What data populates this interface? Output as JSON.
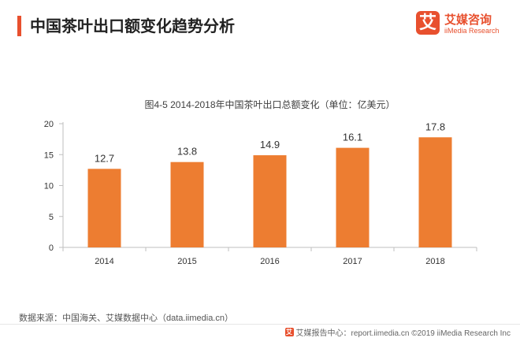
{
  "page": {
    "title": "中国茶叶出口额变化趋势分析"
  },
  "brand": {
    "logo_char": "艾",
    "name_cn": "艾媒咨询",
    "name_en": "iiMedia Research"
  },
  "colors": {
    "accent": "#e8502e",
    "bar": "#ed7d31",
    "axis": "#bfbfbf",
    "text": "#333333"
  },
  "chart_data": {
    "type": "bar",
    "title": "图4-5 2014-2018年中国茶叶出口总额变化（单位：亿美元）",
    "categories": [
      "2014",
      "2015",
      "2016",
      "2017",
      "2018"
    ],
    "values": [
      12.7,
      13.8,
      14.9,
      16.1,
      17.8
    ],
    "value_labels": [
      "12.7",
      "13.8",
      "14.9",
      "16.1",
      "17.8"
    ],
    "yticks": [
      0,
      5,
      10,
      15,
      20
    ],
    "ylim": [
      0,
      20
    ],
    "xlabel": "",
    "ylabel": "",
    "grid": false,
    "legend": "none"
  },
  "footer": {
    "source": "数据来源：中国海关、艾媒数据中心（data.iimedia.cn）",
    "logo_char": "艾",
    "credit": "艾媒报告中心：report.iimedia.cn ©2019 iiMedia Research Inc"
  }
}
